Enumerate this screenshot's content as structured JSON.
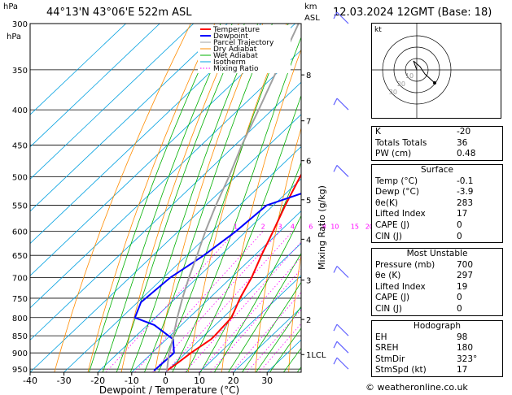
{
  "header": {
    "location": "44°13'N 43°06'E 522m ASL",
    "datetime": "12.03.2024 12GMT (Base: 18)",
    "hpa_label": "hPa",
    "km_label": "km",
    "asl_label": "ASL"
  },
  "chart_data": {
    "type": "line",
    "title": "",
    "xlabel": "Dewpoint / Temperature (°C)",
    "ylabel": "hPa",
    "right_axis_label": "Mixing Ratio (g/kg)",
    "xlim": [
      -40,
      38
    ],
    "ylim": [
      300,
      960
    ],
    "pressure_levels": [
      300,
      350,
      400,
      450,
      500,
      550,
      600,
      650,
      700,
      750,
      800,
      850,
      900,
      950
    ],
    "x_ticks": [
      -40,
      -30,
      -20,
      -10,
      0,
      10,
      20,
      30
    ],
    "km_ticks": [
      {
        "label": "8",
        "p": 356
      },
      {
        "label": "7",
        "p": 415
      },
      {
        "label": "6",
        "p": 474
      },
      {
        "label": "5",
        "p": 540
      },
      {
        "label": "4",
        "p": 616
      },
      {
        "label": "3",
        "p": 706
      },
      {
        "label": "2",
        "p": 805
      },
      {
        "label": "1LCL",
        "p": 905
      }
    ],
    "mixing_ratio_labels": [
      "1",
      "2",
      "3",
      "4",
      "6",
      "8",
      "10",
      "15",
      "20",
      "25"
    ],
    "legend": {
      "placement": "top-left",
      "items": [
        {
          "name": "Temperature",
          "color": "#ff0000"
        },
        {
          "name": "Dewpoint",
          "color": "#0000ff"
        },
        {
          "name": "Parcel Trajectory",
          "color": "#a0a0a0"
        },
        {
          "name": "Dry Adiabat",
          "color": "#ff8c00"
        },
        {
          "name": "Wet Adiabat",
          "color": "#00b000"
        },
        {
          "name": "Isotherm",
          "color": "#00a0e0"
        },
        {
          "name": "Mixing Ratio",
          "color": "#ff00ff"
        }
      ]
    },
    "series": [
      {
        "name": "Temperature",
        "color": "#ff0000",
        "points": [
          [
            955,
            -0.1
          ],
          [
            930,
            0.7
          ],
          [
            900,
            1.5
          ],
          [
            860,
            3.2
          ],
          [
            850,
            3.2
          ],
          [
            800,
            2.5
          ],
          [
            750,
            -1
          ],
          [
            700,
            -4
          ],
          [
            650,
            -8
          ],
          [
            600,
            -12
          ],
          [
            550,
            -16.5
          ],
          [
            500,
            -21
          ],
          [
            450,
            -25.5
          ],
          [
            400,
            -31
          ],
          [
            350,
            -38
          ],
          [
            300,
            -46
          ]
        ]
      },
      {
        "name": "Dewpoint",
        "color": "#0000ff",
        "points": [
          [
            955,
            -3.9
          ],
          [
            900,
            -3.5
          ],
          [
            860,
            -8
          ],
          [
            820,
            -18
          ],
          [
            800,
            -26
          ],
          [
            760,
            -29
          ],
          [
            700,
            -28
          ],
          [
            650,
            -25
          ],
          [
            600,
            -23
          ],
          [
            550,
            -22
          ],
          [
            500,
            -6
          ],
          [
            450,
            -10
          ],
          [
            400,
            -21
          ],
          [
            350,
            -33
          ],
          [
            300,
            -45
          ]
        ]
      },
      {
        "name": "Parcel Trajectory",
        "color": "#a0a0a0",
        "points": [
          [
            955,
            -0.1
          ],
          [
            905,
            -4.5
          ],
          [
            850,
            -9
          ],
          [
            800,
            -13.5
          ],
          [
            750,
            -18
          ],
          [
            700,
            -22.5
          ],
          [
            650,
            -27
          ],
          [
            600,
            -32
          ],
          [
            550,
            -37
          ],
          [
            500,
            -42
          ],
          [
            450,
            -48
          ],
          [
            400,
            -54
          ],
          [
            350,
            -61
          ],
          [
            300,
            -69
          ]
        ]
      }
    ]
  },
  "hodograph": {
    "label": "kt",
    "ring_labels": [
      "10",
      "20",
      "30"
    ]
  },
  "indices": [
    {
      "label": "K",
      "value": "-20"
    },
    {
      "label": "Totals Totals",
      "value": "36"
    },
    {
      "label": "PW (cm)",
      "value": "0.48"
    }
  ],
  "surface": {
    "title": "Surface",
    "rows": [
      {
        "label": "Temp (°C)",
        "value": "-0.1"
      },
      {
        "label": "Dewp (°C)",
        "value": "-3.9"
      },
      {
        "label": "θe(K)",
        "value": "283"
      },
      {
        "label": "Lifted Index",
        "value": "17"
      },
      {
        "label": "CAPE (J)",
        "value": "0"
      },
      {
        "label": "CIN (J)",
        "value": "0"
      }
    ]
  },
  "most_unstable": {
    "title": "Most Unstable",
    "rows": [
      {
        "label": "Pressure (mb)",
        "value": "700"
      },
      {
        "label": "θe (K)",
        "value": "297"
      },
      {
        "label": "Lifted Index",
        "value": "19"
      },
      {
        "label": "CAPE (J)",
        "value": "0"
      },
      {
        "label": "CIN (J)",
        "value": "0"
      }
    ]
  },
  "hodo_params": {
    "title": "Hodograph",
    "rows": [
      {
        "label": "EH",
        "value": "98"
      },
      {
        "label": "SREH",
        "value": "180"
      },
      {
        "label": "StmDir",
        "value": "323°"
      },
      {
        "label": "StmSpd (kt)",
        "value": "17"
      }
    ]
  },
  "credit": "© weatheronline.co.uk"
}
